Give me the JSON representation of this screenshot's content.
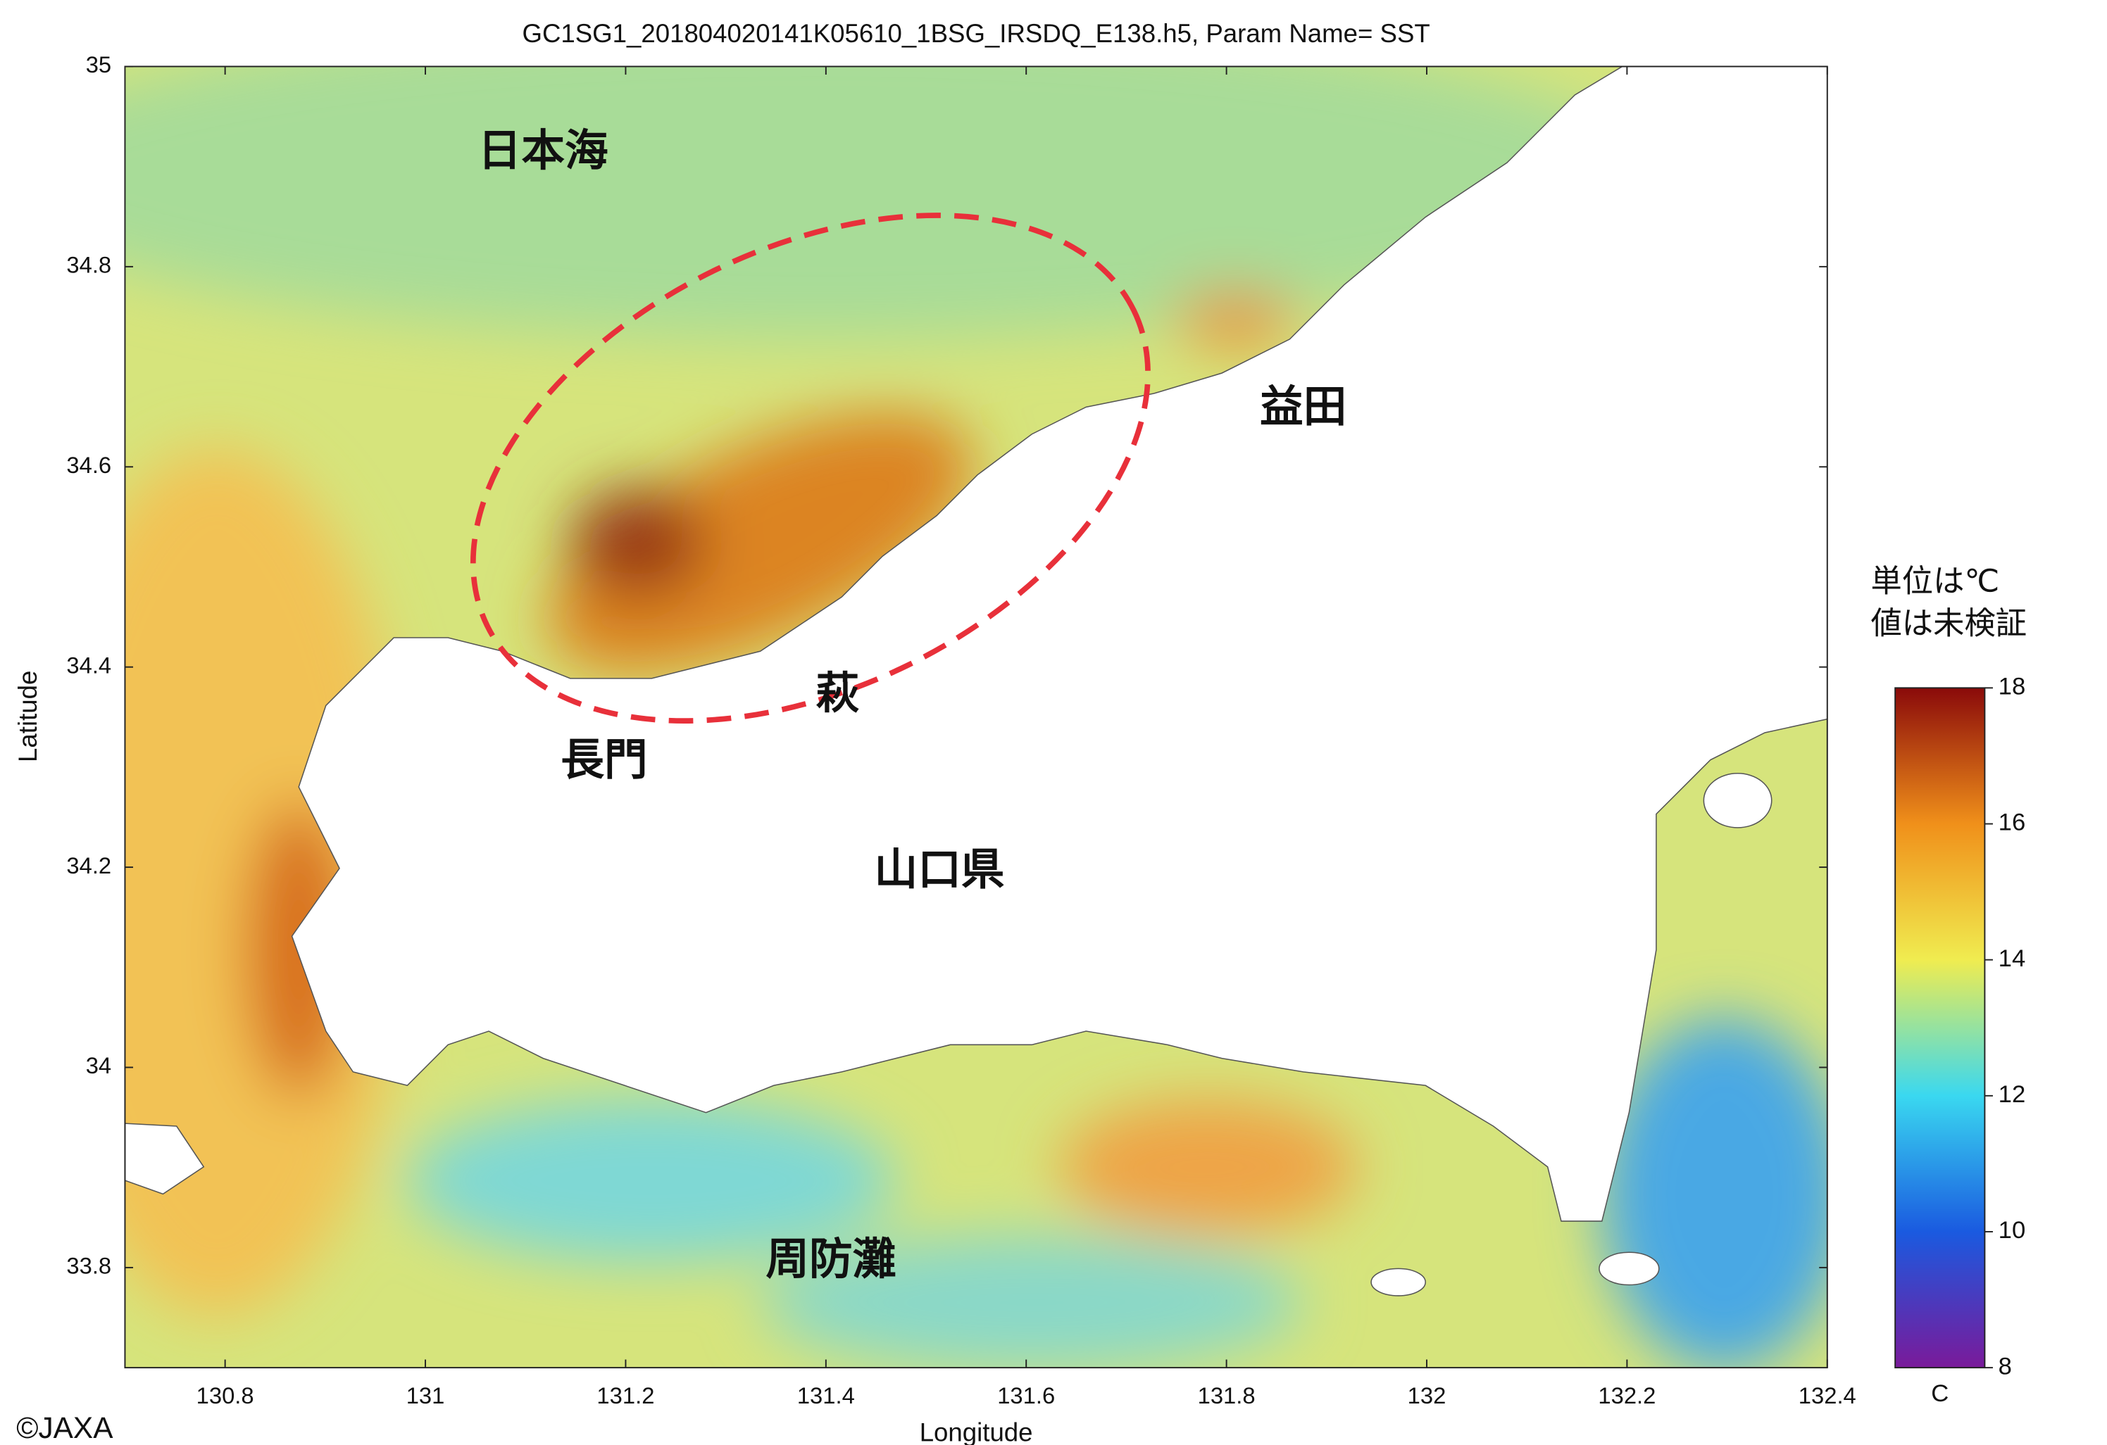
{
  "chart_data": {
    "type": "map",
    "title": "GC1SG1_201804020141K05610_1BSG_IRSDQ_E138.h5, Param Name= SST",
    "x_label": "Longitude",
    "y_label": "Latitude",
    "xlim": [
      130.7,
      132.4
    ],
    "xticks": [
      130.8,
      131,
      131.2,
      131.4,
      131.6,
      131.8,
      132,
      132.2,
      132.4
    ],
    "ylim": [
      33.7,
      35
    ],
    "yticks": [
      33.8,
      34,
      34.2,
      34.4,
      34.6,
      34.8,
      35
    ],
    "places": [
      "日本海",
      "益田",
      "萩",
      "長門",
      "山口県",
      "周防灘"
    ],
    "note": [
      "単位は℃",
      "値は未検証"
    ],
    "colorbar": {
      "range": [
        8,
        18
      ],
      "ticks": [
        8,
        10,
        12,
        14,
        16,
        18
      ],
      "label": "C",
      "colors": [
        "#7a1a9a",
        "#1a5ae0",
        "#3ad8f0",
        "#f0ec50",
        "#f0901a",
        "#8a0a0a"
      ]
    },
    "credit": "©JAXA"
  }
}
